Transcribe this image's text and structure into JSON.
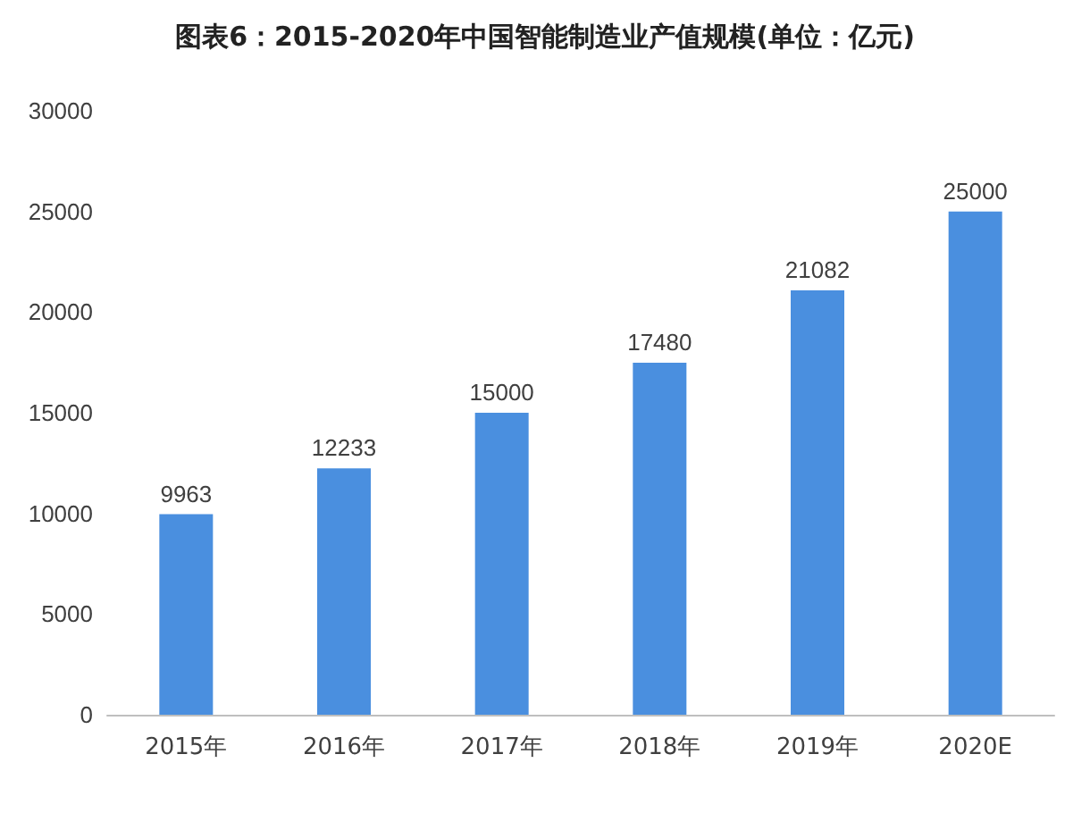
{
  "chart_data": {
    "type": "bar",
    "title": "图表6：2015-2020年中国智能制造业产值规模(单位：亿元)",
    "categories": [
      "2015年",
      "2016年",
      "2017年",
      "2018年",
      "2019年",
      "2020E"
    ],
    "values": [
      9963,
      12233,
      15000,
      17480,
      21082,
      25000
    ],
    "color": "#4a8fdf",
    "ylim": [
      0,
      30000
    ],
    "yticks": [
      0,
      5000,
      10000,
      15000,
      20000,
      25000,
      30000
    ],
    "grid": false,
    "data_labels": true
  }
}
